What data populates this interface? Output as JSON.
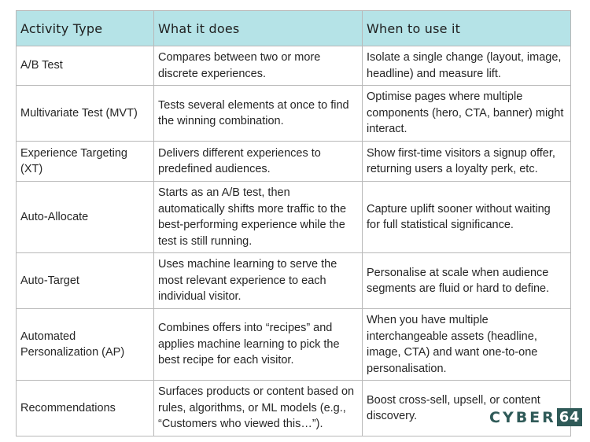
{
  "table": {
    "headers": [
      "Activity Type",
      "What it does",
      "When to use it"
    ],
    "rows": [
      {
        "type": "A/B Test",
        "does": "Compares between two or more discrete experiences.",
        "when": "Isolate a single change (layout, image, headline) and measure lift."
      },
      {
        "type": "Multivariate Test (MVT)",
        "does": "Tests several elements at once to find the winning combination.",
        "when": "Optimise pages where multiple components (hero, CTA, banner) might interact."
      },
      {
        "type": "Experience Targeting (XT)",
        "does": "Delivers different experiences to predefined audiences.",
        "when": "Show first-time visitors a signup offer, returning users a loyalty perk, etc."
      },
      {
        "type": "Auto-Allocate",
        "does": "Starts as an A/B test, then automatically shifts more traffic to the best-performing experience while the test is still running.",
        "when": "Capture uplift sooner without waiting for full statistical significance."
      },
      {
        "type": "Auto-Target",
        "does": "Uses machine learning to serve the most relevant experience to each individual visitor.",
        "when": "Personalise at scale when audience segments are fluid or hard to define."
      },
      {
        "type": "Automated Personalization (AP)",
        "does": "Combines offers into “recipes” and applies machine learning to pick the best recipe for each visitor.",
        "when": "When you have multiple interchangeable assets (headline, image, CTA) and want one-to-one personalisation."
      },
      {
        "type": "Recommendations",
        "does": "Surfaces products or content based on rules, algorithms, or ML models (e.g., “Customers who viewed this…”).",
        "when": "Boost cross-sell, upsell, or content discovery."
      }
    ]
  },
  "watermark": {
    "text": "CYBER",
    "number": "64"
  }
}
